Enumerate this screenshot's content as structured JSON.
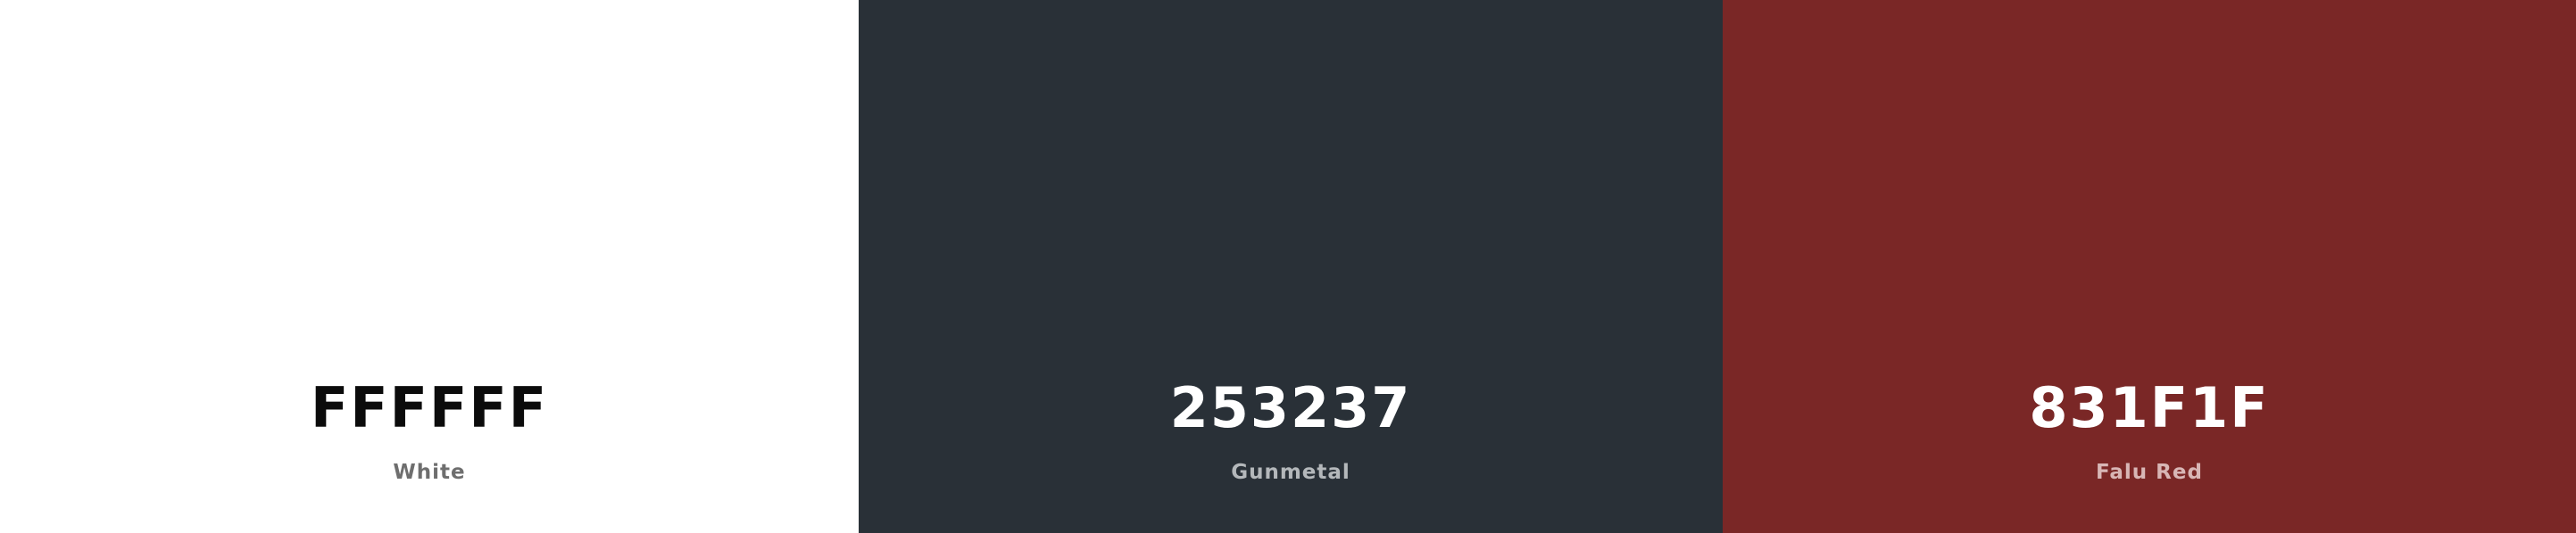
{
  "palette": {
    "colors": [
      {
        "hex": "FFFFFF",
        "name": "White",
        "background": "#FFFFFF",
        "hex_text_color": "#0b0b0b",
        "name_text_color": "#6e6e6e"
      },
      {
        "hex": "253237",
        "name": "Gunmetal",
        "background": "#293037",
        "hex_text_color": "#ffffff",
        "name_text_color": "#b4b8bb"
      },
      {
        "hex": "831F1F",
        "name": "Falu Red",
        "background": "#7a2726",
        "hex_text_color": "#ffffff",
        "name_text_color": "#d8b6b5"
      }
    ]
  }
}
